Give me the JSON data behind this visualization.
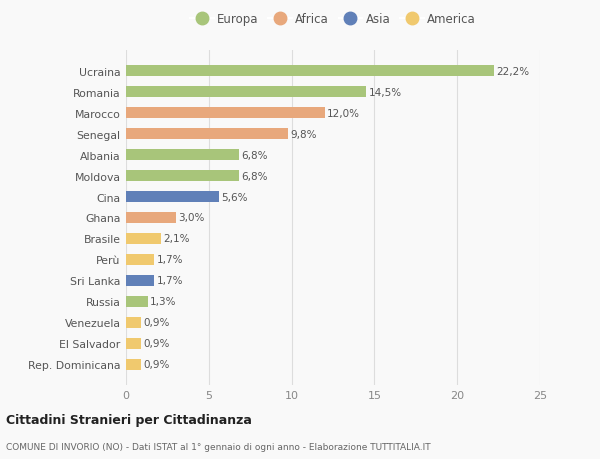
{
  "countries": [
    "Ucraina",
    "Romania",
    "Marocco",
    "Senegal",
    "Albania",
    "Moldova",
    "Cina",
    "Ghana",
    "Brasile",
    "Perù",
    "Sri Lanka",
    "Russia",
    "Venezuela",
    "El Salvador",
    "Rep. Dominicana"
  ],
  "values": [
    22.2,
    14.5,
    12.0,
    9.8,
    6.8,
    6.8,
    5.6,
    3.0,
    2.1,
    1.7,
    1.7,
    1.3,
    0.9,
    0.9,
    0.9
  ],
  "labels": [
    "22,2%",
    "14,5%",
    "12,0%",
    "9,8%",
    "6,8%",
    "6,8%",
    "5,6%",
    "3,0%",
    "2,1%",
    "1,7%",
    "1,7%",
    "1,3%",
    "0,9%",
    "0,9%",
    "0,9%"
  ],
  "continents": [
    "Europa",
    "Europa",
    "Africa",
    "Africa",
    "Europa",
    "Europa",
    "Asia",
    "Africa",
    "America",
    "America",
    "Asia",
    "Europa",
    "America",
    "America",
    "America"
  ],
  "continent_colors": {
    "Europa": "#a8c57a",
    "Africa": "#e8a87c",
    "Asia": "#6080b8",
    "America": "#f0c96e"
  },
  "legend_order": [
    "Europa",
    "Africa",
    "Asia",
    "America"
  ],
  "xlim": [
    0,
    25
  ],
  "xticks": [
    0,
    5,
    10,
    15,
    20,
    25
  ],
  "title": "Cittadini Stranieri per Cittadinanza",
  "subtitle": "COMUNE DI INVORIO (NO) - Dati ISTAT al 1° gennaio di ogni anno - Elaborazione TUTTITALIA.IT",
  "bg_color": "#f9f9f9",
  "grid_color": "#dddddd",
  "bar_height": 0.55
}
